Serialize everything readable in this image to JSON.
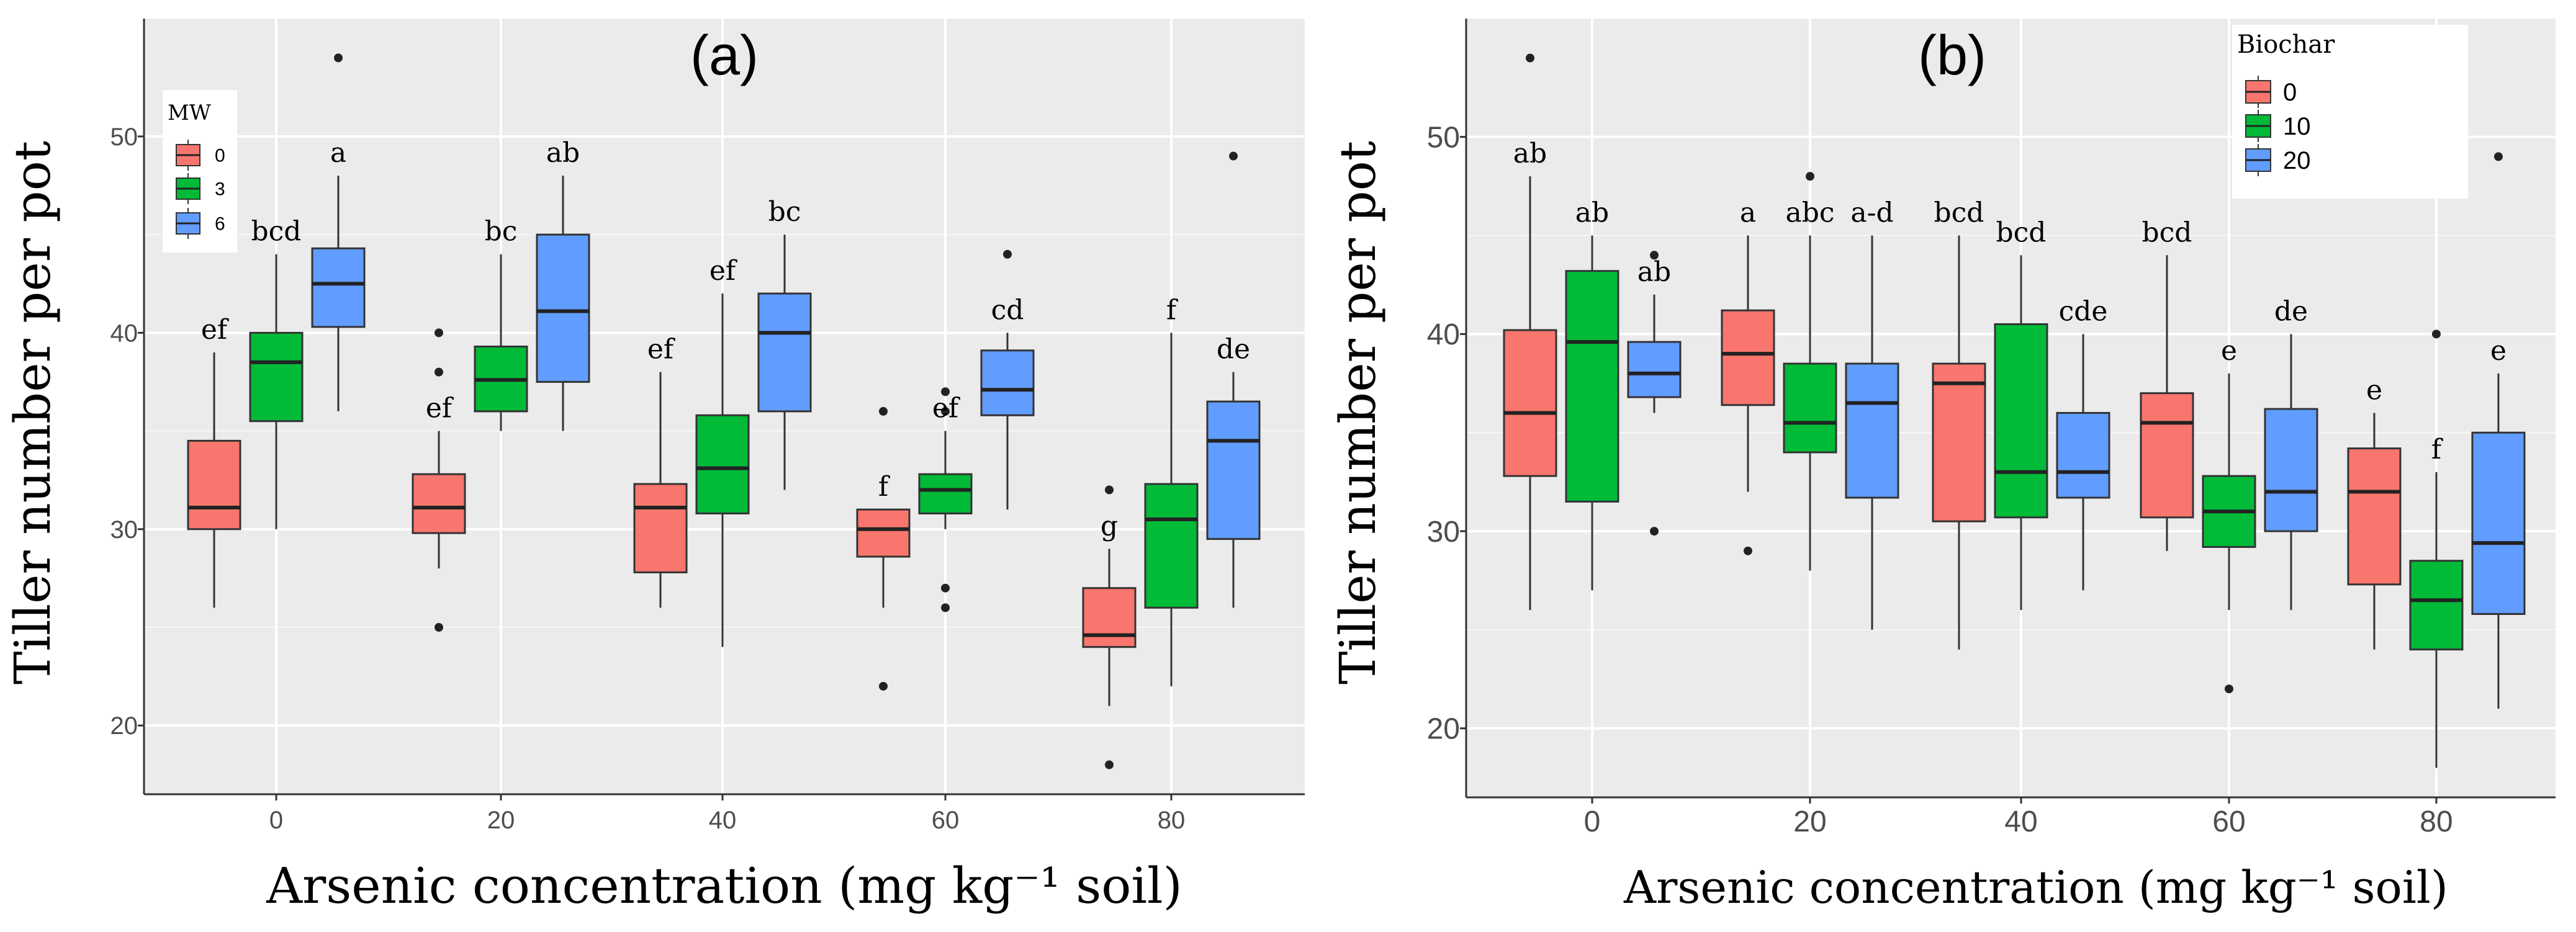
{
  "chart_data": [
    {
      "type": "box",
      "panel_label": "(a)",
      "xlabel": "Arsenic concentration (mg kg⁻¹ soil)",
      "ylabel": "Tiller number per pot",
      "categories": [
        "0",
        "20",
        "40",
        "60",
        "80"
      ],
      "y_ticks": [
        20,
        30,
        40,
        50
      ],
      "ylim": [
        16.5,
        56
      ],
      "grid": true,
      "legend": {
        "title": "MW",
        "position": "top-left",
        "entries": [
          "0",
          "3",
          "6"
        ]
      },
      "series": [
        {
          "name": "0",
          "color": "#F8766D",
          "boxes": [
            {
              "min": 26,
              "q1": 30,
              "median": 31.1,
              "q3": 34.5,
              "max": 39,
              "outliers": [],
              "label": "ef"
            },
            {
              "min": 28,
              "q1": 29.8,
              "median": 31.1,
              "q3": 32.8,
              "max": 35,
              "outliers": [
                40,
                38,
                25
              ],
              "label": "ef"
            },
            {
              "min": 26,
              "q1": 27.8,
              "median": 31.1,
              "q3": 32.3,
              "max": 38,
              "outliers": [],
              "label": "ef"
            },
            {
              "min": 26,
              "q1": 28.6,
              "median": 30,
              "q3": 31,
              "max": 31,
              "outliers": [
                36,
                22
              ],
              "label": "f"
            },
            {
              "min": 21,
              "q1": 24,
              "median": 24.6,
              "q3": 27,
              "max": 29,
              "outliers": [
                32,
                18
              ],
              "label": "g"
            }
          ]
        },
        {
          "name": "3",
          "color": "#00BA38",
          "boxes": [
            {
              "min": 30,
              "q1": 35.5,
              "median": 38.5,
              "q3": 40,
              "max": 44,
              "outliers": [],
              "label": "bcd"
            },
            {
              "min": 35,
              "q1": 36,
              "median": 37.6,
              "q3": 39.3,
              "max": 44,
              "outliers": [],
              "label": "bc"
            },
            {
              "min": 24,
              "q1": 30.8,
              "median": 33.1,
              "q3": 35.8,
              "max": 42,
              "outliers": [],
              "label": "ef"
            },
            {
              "min": 30,
              "q1": 30.8,
              "median": 32,
              "q3": 32.8,
              "max": 35,
              "outliers": [
                37,
                36,
                27,
                26
              ],
              "label": "ef"
            },
            {
              "min": 22,
              "q1": 26,
              "median": 30.5,
              "q3": 32.3,
              "max": 40,
              "outliers": [],
              "label": "f"
            }
          ]
        },
        {
          "name": "6",
          "color": "#619CFF",
          "boxes": [
            {
              "min": 36,
              "q1": 40.3,
              "median": 42.5,
              "q3": 44.3,
              "max": 48,
              "outliers": [
                54
              ],
              "label": "a"
            },
            {
              "min": 35,
              "q1": 37.5,
              "median": 41.1,
              "q3": 45,
              "max": 48,
              "outliers": [],
              "label": "ab"
            },
            {
              "min": 32,
              "q1": 36,
              "median": 40,
              "q3": 42,
              "max": 45,
              "outliers": [],
              "label": "bc"
            },
            {
              "min": 31,
              "q1": 35.8,
              "median": 37.1,
              "q3": 39.1,
              "max": 40,
              "outliers": [
                44
              ],
              "label": "cd"
            },
            {
              "min": 26,
              "q1": 29.5,
              "median": 34.5,
              "q3": 36.5,
              "max": 38,
              "outliers": [
                49
              ],
              "label": "de"
            }
          ]
        }
      ]
    },
    {
      "type": "box",
      "panel_label": "(b)",
      "xlabel": "Arsenic concentration (mg kg⁻¹ soil)",
      "ylabel": "Tiller number per pot",
      "categories": [
        "0",
        "20",
        "40",
        "60",
        "80"
      ],
      "y_ticks": [
        20,
        30,
        40,
        50
      ],
      "ylim": [
        16.5,
        56
      ],
      "grid": true,
      "legend": {
        "title": "Biochar",
        "position": "top-right",
        "entries": [
          "0",
          "10",
          "20"
        ]
      },
      "series": [
        {
          "name": "0",
          "color": "#F8766D",
          "boxes": [
            {
              "min": 26,
              "q1": 32.8,
              "median": 36,
              "q3": 40.2,
              "max": 48,
              "outliers": [
                54
              ],
              "label": "ab"
            },
            {
              "min": 32,
              "q1": 36.4,
              "median": 39,
              "q3": 41.2,
              "max": 45,
              "outliers": [
                29
              ],
              "label": "a"
            },
            {
              "min": 24,
              "q1": 30.5,
              "median": 37.5,
              "q3": 38.5,
              "max": 45,
              "outliers": [],
              "label": "bcd"
            },
            {
              "min": 29,
              "q1": 30.7,
              "median": 35.5,
              "q3": 37,
              "max": 44,
              "outliers": [],
              "label": "bcd"
            },
            {
              "min": 24,
              "q1": 27.3,
              "median": 32,
              "q3": 34.2,
              "max": 36,
              "outliers": [],
              "label": "e"
            }
          ]
        },
        {
          "name": "10",
          "color": "#00BA38",
          "boxes": [
            {
              "min": 27,
              "q1": 31.5,
              "median": 39.6,
              "q3": 43.2,
              "max": 45,
              "outliers": [],
              "label": "ab"
            },
            {
              "min": 28,
              "q1": 34,
              "median": 35.5,
              "q3": 38.5,
              "max": 45,
              "outliers": [
                48
              ],
              "label": "abc"
            },
            {
              "min": 26,
              "q1": 30.7,
              "median": 33,
              "q3": 40.5,
              "max": 44,
              "outliers": [],
              "label": "bcd"
            },
            {
              "min": 26,
              "q1": 29.2,
              "median": 31,
              "q3": 32.8,
              "max": 38,
              "outliers": [
                22
              ],
              "label": "e"
            },
            {
              "min": 18,
              "q1": 24,
              "median": 26.5,
              "q3": 28.5,
              "max": 33,
              "outliers": [
                40
              ],
              "label": "f"
            }
          ]
        },
        {
          "name": "20",
          "color": "#619CFF",
          "boxes": [
            {
              "min": 36,
              "q1": 36.8,
              "median": 38,
              "q3": 39.6,
              "max": 42,
              "outliers": [
                44,
                30
              ],
              "label": "ab"
            },
            {
              "min": 25,
              "q1": 31.7,
              "median": 36.5,
              "q3": 38.5,
              "max": 45,
              "outliers": [],
              "label": "a-d"
            },
            {
              "min": 27,
              "q1": 31.7,
              "median": 33,
              "q3": 36,
              "max": 40,
              "outliers": [],
              "label": "cde"
            },
            {
              "min": 26,
              "q1": 30,
              "median": 32,
              "q3": 36.2,
              "max": 40,
              "outliers": [],
              "label": "de"
            },
            {
              "min": 21,
              "q1": 25.8,
              "median": 29.4,
              "q3": 35,
              "max": 38,
              "outliers": [
                49
              ],
              "label": "e"
            }
          ]
        }
      ]
    }
  ]
}
